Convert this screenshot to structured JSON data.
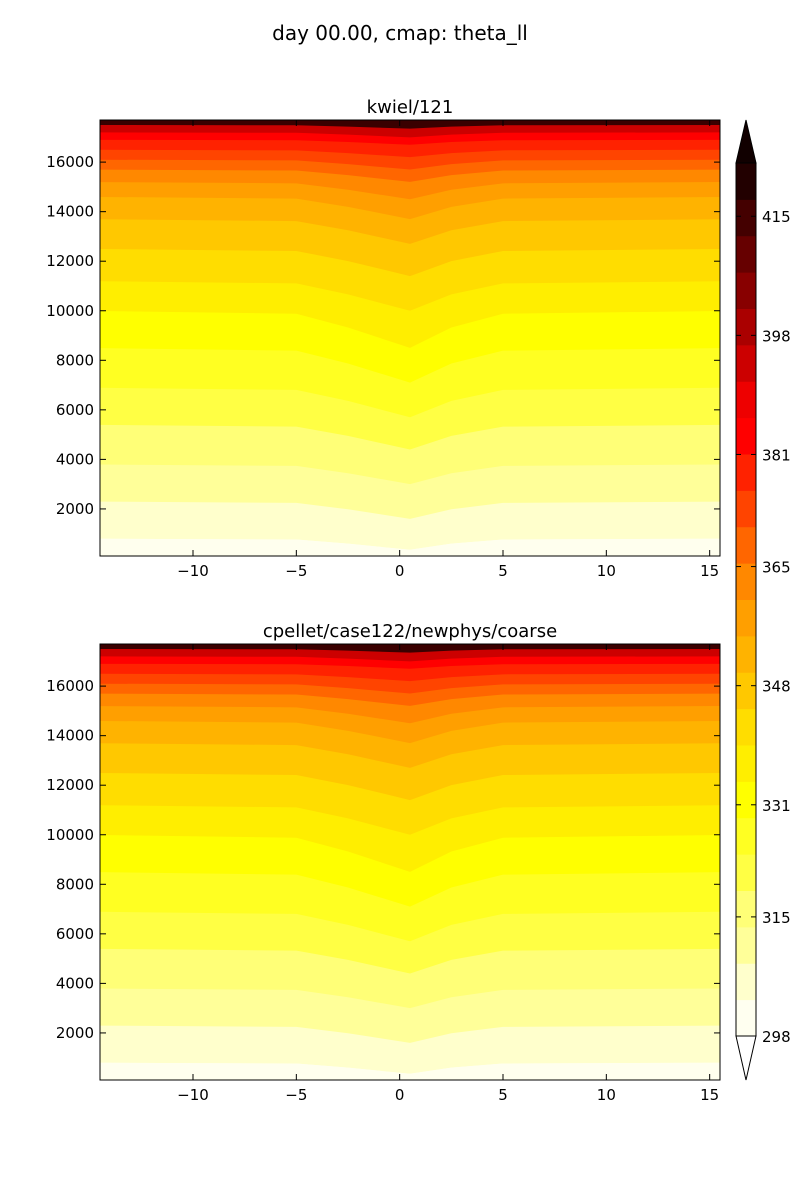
{
  "figure": {
    "suptitle": "day 00.00, cmap: theta_ll"
  },
  "chart_data": [
    {
      "type": "contourf",
      "title": "kwiel/121",
      "xlim": [
        -14.5,
        15.5
      ],
      "ylim": [
        100,
        17700
      ],
      "xticks": [
        -10,
        -5,
        0,
        5,
        10,
        15
      ],
      "xtick_labels": [
        "−10",
        "−5",
        "0",
        "5",
        "10",
        "15"
      ],
      "yticks": [
        2000,
        4000,
        6000,
        8000,
        10000,
        12000,
        14000,
        16000
      ],
      "ytick_labels": [
        "2000",
        "4000",
        "6000",
        "8000",
        "10000",
        "12000",
        "14000",
        "16000"
      ],
      "contour_boundaries_edge_y": [
        800,
        2300,
        3800,
        5400,
        6900,
        8500,
        10000,
        11200,
        12500,
        13700,
        14600,
        15200,
        15700,
        16100,
        16500,
        16900,
        17200,
        17500
      ],
      "center_dip_y": [
        450,
        700,
        800,
        1000,
        1200,
        1400,
        1500,
        1200,
        1100,
        1000,
        900,
        700,
        500,
        400,
        300,
        200,
        200,
        150
      ],
      "dip_center_x": 0.5
    },
    {
      "type": "contourf",
      "title": "cpellet/case122/newphys/coarse",
      "xlim": [
        -14.5,
        15.5
      ],
      "ylim": [
        100,
        17700
      ],
      "xticks": [
        -10,
        -5,
        0,
        5,
        10,
        15
      ],
      "xtick_labels": [
        "−10",
        "−5",
        "0",
        "5",
        "10",
        "15"
      ],
      "yticks": [
        2000,
        4000,
        6000,
        8000,
        10000,
        12000,
        14000,
        16000
      ],
      "ytick_labels": [
        "2000",
        "4000",
        "6000",
        "8000",
        "10000",
        "12000",
        "14000",
        "16000"
      ],
      "contour_boundaries_edge_y": [
        800,
        2300,
        3800,
        5400,
        6900,
        8500,
        10000,
        11200,
        12500,
        13700,
        14600,
        15200,
        15700,
        16100,
        16500,
        16900,
        17200,
        17500
      ],
      "center_dip_y": [
        450,
        700,
        800,
        1000,
        1200,
        1400,
        1500,
        1200,
        1100,
        1000,
        900,
        700,
        500,
        400,
        300,
        200,
        200,
        150
      ],
      "dip_center_x": 0.5
    }
  ],
  "colorbar": {
    "ticks": [
      298,
      315,
      331,
      348,
      365,
      381,
      398,
      415
    ],
    "tick_labels": [
      "298",
      "315",
      "331",
      "348",
      "365",
      "381",
      "398",
      "415"
    ],
    "vmin": 298,
    "vmax": 422.6,
    "levels": 23,
    "extend": "both",
    "colors": [
      "#ffffff",
      "#fffff0",
      "#ffffcc",
      "#ffff99",
      "#ffff77",
      "#ffff44",
      "#ffff22",
      "#ffff00",
      "#ffee00",
      "#ffdd00",
      "#ffc800",
      "#ffb300",
      "#ff9f00",
      "#ff8800",
      "#ff6600",
      "#ff4400",
      "#ff2200",
      "#ff0000",
      "#ee0000",
      "#cc0000",
      "#aa0000",
      "#880000",
      "#660000",
      "#440000",
      "#220000",
      "#110000"
    ],
    "field_colors_bottom_to_top": [
      "#fffff0",
      "#ffffcc",
      "#ffff99",
      "#ffff77",
      "#ffff44",
      "#ffff22",
      "#ffff00",
      "#ffee00",
      "#ffdd00",
      "#ffc800",
      "#ffb300",
      "#ff9f00",
      "#ff8800",
      "#ff6600",
      "#ff4400",
      "#ff2200",
      "#ff0000",
      "#cc0000",
      "#880000"
    ]
  }
}
